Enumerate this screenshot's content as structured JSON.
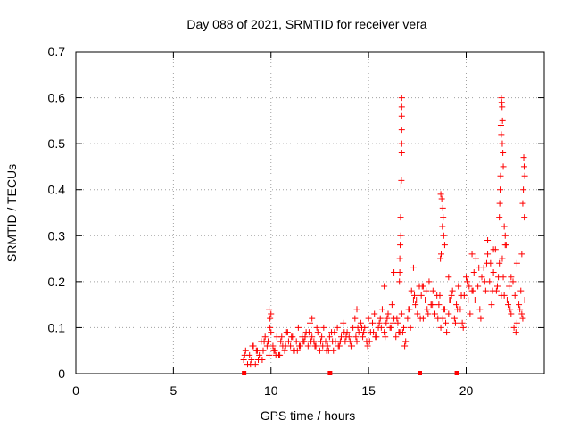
{
  "chart_data": {
    "type": "scatter",
    "title": "Day 088 of 2021, SRMTID for receiver vera",
    "xlabel": "GPS time / hours",
    "ylabel": "SRMTID / TECUs",
    "xlim": [
      0,
      24
    ],
    "ylim": [
      0,
      0.7
    ],
    "xticks": [
      0,
      5,
      10,
      15,
      20
    ],
    "xtick_labels": [
      "0",
      "5",
      "10",
      "15",
      "20"
    ],
    "yticks": [
      0,
      0.1,
      0.2,
      0.3,
      0.4,
      0.5,
      0.6,
      0.7
    ],
    "ytick_labels": [
      "0",
      "0.1",
      "0.2",
      "0.3",
      "0.4",
      "0.5",
      "0.6",
      "0.7"
    ],
    "grid": true,
    "marker": "+",
    "color": "#ff0000",
    "series": [
      {
        "name": "SRMTID",
        "x": [
          8.6,
          8.7,
          8.8,
          8.9,
          9.0,
          9.1,
          9.2,
          9.3,
          9.4,
          9.5,
          9.6,
          9.7,
          9.8,
          9.9,
          10.0,
          10.1,
          10.2,
          10.3,
          10.4,
          10.5,
          10.6,
          10.7,
          10.8,
          10.9,
          11.0,
          11.1,
          11.2,
          11.3,
          11.4,
          11.5,
          11.6,
          11.7,
          11.8,
          11.9,
          12.0,
          12.1,
          12.2,
          12.3,
          12.4,
          12.5,
          12.6,
          12.7,
          12.8,
          12.9,
          13.0,
          13.1,
          13.2,
          13.3,
          13.4,
          13.5,
          13.6,
          13.7,
          13.8,
          13.9,
          14.0,
          14.1,
          14.2,
          14.3,
          14.4,
          14.5,
          14.6,
          14.7,
          14.8,
          14.9,
          15.0,
          15.1,
          15.2,
          15.3,
          15.4,
          15.5,
          15.6,
          15.7,
          15.8,
          15.9,
          16.0,
          16.1,
          16.2,
          16.3,
          16.4,
          16.5,
          16.6,
          16.7,
          16.8,
          16.9,
          17.0,
          17.1,
          17.2,
          17.3,
          17.4,
          17.5,
          17.6,
          17.7,
          17.8,
          17.9,
          18.0,
          18.1,
          18.2,
          18.3,
          18.4,
          18.5,
          18.6,
          18.7,
          18.8,
          18.9,
          19.0,
          19.1,
          19.2,
          19.3,
          19.4,
          19.5,
          19.6,
          19.7,
          19.8,
          19.9,
          20.0,
          20.1,
          20.2,
          20.3,
          20.4,
          20.5,
          20.6,
          20.7,
          20.8,
          20.9,
          21.0,
          21.1,
          21.2,
          21.3,
          21.4,
          21.5,
          21.6,
          21.7,
          21.8,
          21.9,
          22.0,
          22.1,
          22.2,
          22.3,
          22.4,
          22.5,
          22.6,
          22.7,
          22.8,
          22.9,
          23.0,
          8.65,
          8.95,
          9.25,
          9.55,
          9.85,
          10.15,
          10.45,
          10.75,
          11.05,
          11.35,
          11.65,
          11.95,
          12.25,
          12.55,
          12.85,
          13.15,
          13.45,
          13.75,
          14.05,
          14.35,
          14.65,
          14.95,
          15.25,
          15.55,
          15.85,
          16.15,
          16.45,
          16.75,
          17.05,
          17.35,
          17.65,
          17.95,
          18.25,
          18.55,
          18.85,
          19.15,
          19.45,
          19.75,
          20.05,
          20.35,
          20.65,
          20.95,
          21.25,
          21.55,
          21.85,
          22.15,
          22.45,
          22.75,
          9.05,
          9.35,
          9.65,
          9.95,
          10.25,
          10.55,
          10.85,
          11.15,
          11.45,
          11.75,
          12.05,
          12.35,
          12.65,
          12.95,
          13.25,
          13.55,
          13.85,
          14.15,
          14.45,
          14.75,
          15.05,
          15.35,
          15.65,
          15.95,
          16.25,
          16.55,
          16.85,
          17.15,
          17.45,
          17.75,
          18.05,
          18.35,
          18.65,
          18.95,
          19.25,
          19.55,
          19.85,
          20.15,
          20.45,
          20.75,
          21.05,
          21.35,
          21.65,
          21.95,
          22.25,
          22.55,
          22.85,
          16.7,
          16.7,
          16.7,
          16.7,
          16.7,
          16.7,
          16.68,
          16.66,
          16.64,
          16.65,
          16.62,
          16.6,
          16.6,
          16.58,
          18.7,
          18.75,
          18.8,
          18.82,
          18.78,
          18.85,
          18.9,
          18.72,
          18.68,
          21.8,
          21.82,
          21.84,
          21.86,
          21.78,
          21.8,
          21.85,
          21.88,
          21.9,
          21.76,
          21.74,
          21.72,
          21.7,
          21.95,
          22.0,
          22.05,
          22.95,
          22.97,
          23.0,
          22.93,
          22.9,
          22.98,
          22.85,
          9.9,
          9.95,
          10.0,
          12.1,
          14.4,
          15.8,
          16.3,
          17.3,
          17.8,
          19.1,
          20.3,
          21.1,
          21.4,
          22.3,
          22.6
        ],
        "y": [
          0.03,
          0.05,
          0.02,
          0.04,
          0.03,
          0.06,
          0.02,
          0.05,
          0.04,
          0.07,
          0.05,
          0.08,
          0.06,
          0.04,
          0.09,
          0.06,
          0.05,
          0.08,
          0.04,
          0.07,
          0.06,
          0.05,
          0.09,
          0.07,
          0.06,
          0.08,
          0.05,
          0.07,
          0.1,
          0.06,
          0.08,
          0.07,
          0.09,
          0.06,
          0.11,
          0.08,
          0.07,
          0.06,
          0.09,
          0.05,
          0.08,
          0.1,
          0.07,
          0.06,
          0.08,
          0.09,
          0.05,
          0.07,
          0.1,
          0.06,
          0.08,
          0.11,
          0.07,
          0.09,
          0.08,
          0.06,
          0.1,
          0.12,
          0.07,
          0.09,
          0.11,
          0.08,
          0.1,
          0.07,
          0.12,
          0.09,
          0.11,
          0.13,
          0.08,
          0.1,
          0.12,
          0.14,
          0.09,
          0.11,
          0.13,
          0.1,
          0.15,
          0.12,
          0.08,
          0.11,
          0.09,
          0.13,
          0.1,
          0.07,
          0.12,
          0.14,
          0.18,
          0.16,
          0.15,
          0.13,
          0.19,
          0.17,
          0.12,
          0.16,
          0.14,
          0.2,
          0.15,
          0.18,
          0.13,
          0.17,
          0.15,
          0.1,
          0.12,
          0.14,
          0.09,
          0.13,
          0.16,
          0.18,
          0.12,
          0.15,
          0.19,
          0.14,
          0.11,
          0.17,
          0.21,
          0.16,
          0.13,
          0.18,
          0.22,
          0.25,
          0.19,
          0.14,
          0.21,
          0.23,
          0.18,
          0.26,
          0.2,
          0.15,
          0.22,
          0.27,
          0.19,
          0.24,
          0.17,
          0.21,
          0.28,
          0.16,
          0.19,
          0.13,
          0.2,
          0.17,
          0.11,
          0.15,
          0.18,
          0.12,
          0.16,
          0.04,
          0.02,
          0.05,
          0.03,
          0.07,
          0.05,
          0.04,
          0.06,
          0.08,
          0.05,
          0.07,
          0.09,
          0.06,
          0.07,
          0.05,
          0.07,
          0.06,
          0.09,
          0.07,
          0.08,
          0.1,
          0.06,
          0.09,
          0.11,
          0.08,
          0.1,
          0.12,
          0.09,
          0.14,
          0.17,
          0.12,
          0.18,
          0.15,
          0.12,
          0.14,
          0.16,
          0.11,
          0.17,
          0.2,
          0.18,
          0.23,
          0.2,
          0.24,
          0.18,
          0.25,
          0.15,
          0.1,
          0.14,
          0.06,
          0.03,
          0.07,
          0.1,
          0.04,
          0.08,
          0.09,
          0.05,
          0.06,
          0.08,
          0.07,
          0.1,
          0.06,
          0.05,
          0.09,
          0.07,
          0.08,
          0.06,
          0.1,
          0.09,
          0.07,
          0.08,
          0.1,
          0.12,
          0.11,
          0.09,
          0.06,
          0.1,
          0.16,
          0.19,
          0.13,
          0.15,
          0.17,
          0.11,
          0.17,
          0.14,
          0.1,
          0.19,
          0.16,
          0.12,
          0.24,
          0.18,
          0.21,
          0.17,
          0.14,
          0.09,
          0.13,
          0.6,
          0.58,
          0.56,
          0.53,
          0.5,
          0.48,
          0.42,
          0.41,
          0.34,
          0.3,
          0.28,
          0.25,
          0.22,
          0.2,
          0.39,
          0.38,
          0.36,
          0.34,
          0.32,
          0.3,
          0.28,
          0.26,
          0.25,
          0.6,
          0.59,
          0.58,
          0.55,
          0.54,
          0.52,
          0.5,
          0.48,
          0.45,
          0.43,
          0.4,
          0.37,
          0.34,
          0.32,
          0.3,
          0.28,
          0.47,
          0.45,
          0.43,
          0.4,
          0.37,
          0.34,
          0.26,
          0.14,
          0.12,
          0.13,
          0.12,
          0.14,
          0.19,
          0.22,
          0.23,
          0.19,
          0.21,
          0.26,
          0.29,
          0.27,
          0.21,
          0.24
        ]
      }
    ],
    "axis_markers_x": [
      8.6,
      13.0,
      17.6,
      19.5
    ]
  }
}
